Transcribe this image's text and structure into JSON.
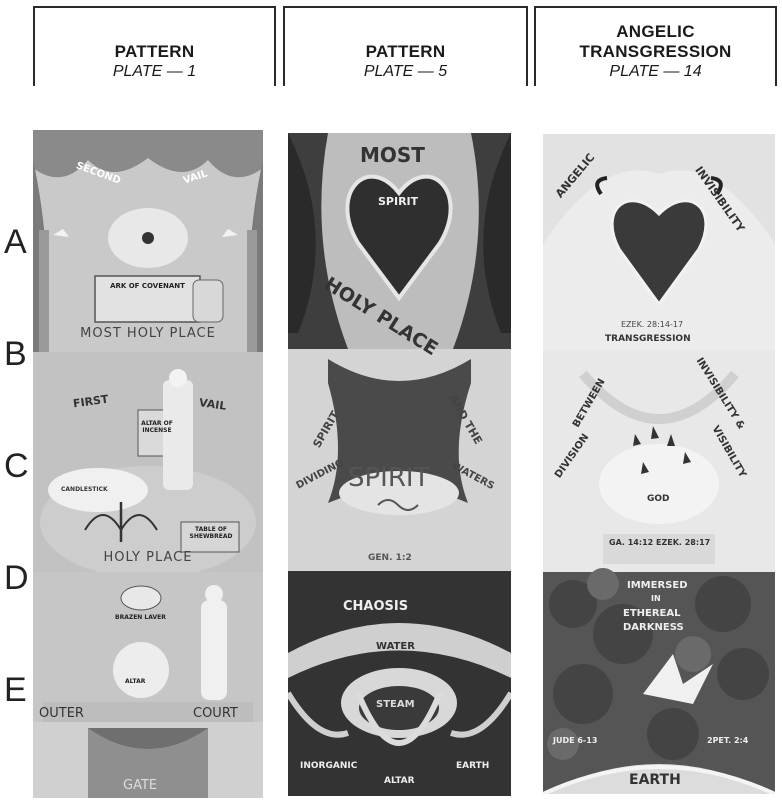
{
  "columns": [
    {
      "title": "PATTERN",
      "plate": "PLATE — 1"
    },
    {
      "title": "PATTERN",
      "plate": "PLATE — 5"
    },
    {
      "title": "ANGELIC\nTRANSGRESSION",
      "plate": "PLATE — 14"
    }
  ],
  "row_letters": [
    "A",
    "B",
    "C",
    "D",
    "E"
  ],
  "plate1": {
    "second_vail_left": "SECOND",
    "second_vail_right": "VAIL",
    "ark_label": "ARK OF COVENANT",
    "most_holy_place": "MOST HOLY PLACE",
    "first_vail_left": "FIRST",
    "first_vail_right": "VAIL",
    "altar_label": "ALTAR OF INCENSE",
    "candlestick_label": "CANDLESTICK",
    "table_label": "TABLE OF SHEWBREAD",
    "holy_place": "HOLY PLACE",
    "laver_label": "BRAZEN LAVER",
    "altar_label_2": "ALTAR",
    "outer": "OUTER",
    "court": "COURT",
    "gate": "GATE"
  },
  "plate5": {
    "most": "MOST",
    "spirit_small": "SPIRIT",
    "holy_place": "HOLY PLACE",
    "spirit_left": "SPIRIT",
    "and_the": "AND THE",
    "spirit_big": "SPIRIT",
    "dividing": "DIVIDING",
    "waters": "WATERS",
    "gen_ref": "GEN. 1:2",
    "chaosis": "CHAOSIS",
    "water": "WATER",
    "steam": "STEAM",
    "inorganic": "INORGANIC",
    "earth": "EARTH",
    "altar": "ALTAR"
  },
  "plate14": {
    "angelic": "ANGELIC",
    "invisibility": "INVISIBILITY",
    "ezek_ref": "EZEK. 28:14-17",
    "transgression": "TRANSGRESSION",
    "between": "BETWEEN",
    "invisibility_2": "INVISIBILITY &",
    "division": "DIVISION",
    "visibility": "VISIBILITY",
    "god": "GOD",
    "refs": "GA. 14:12   EZEK. 28:17",
    "immersed": "IMMERSED",
    "in": "IN",
    "ethereal": "ETHEREAL",
    "darkness": "DARKNESS",
    "jude_ref": "JUDE 6-13",
    "pet_ref": "2PET. 2:4",
    "earth": "EARTH"
  }
}
